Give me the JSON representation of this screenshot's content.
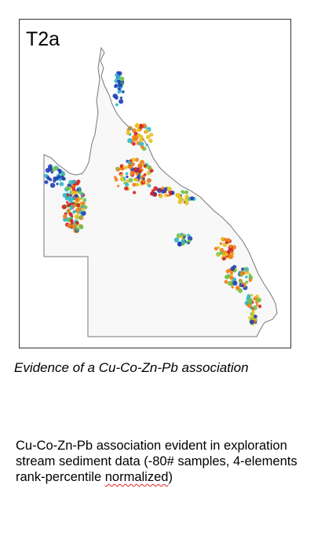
{
  "panel": {
    "label": "T2a"
  },
  "caption": "Evidence of a Cu-Co-Zn-Pb association",
  "description": {
    "text_main": "Cu-Co-Zn-Pb association evident in exploration stream sediment data (-80# samples, 4-elements rank-percentile ",
    "text_flagged": "normalized",
    "text_end": ")"
  },
  "colors": {
    "land_fill": "#f8f8f8",
    "coastline": "#777777",
    "blue": "#1f3fb5",
    "cyan": "#2eb8c8",
    "green": "#6cc24a",
    "yellow": "#e6c21f",
    "orange": "#ef7d1a",
    "red": "#d42020",
    "spellcheck_underline": "#e02020"
  }
}
